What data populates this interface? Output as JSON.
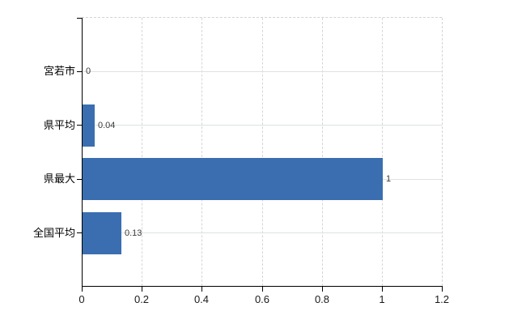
{
  "chart_data": {
    "type": "bar",
    "orientation": "horizontal",
    "title": "",
    "xlabel": "",
    "ylabel": "",
    "categories": [
      "宮若市",
      "県平均",
      "県最大",
      "全国平均"
    ],
    "values": [
      0,
      0.04,
      1,
      0.13
    ],
    "value_labels": [
      "0",
      "0.04",
      "1",
      "0.13"
    ],
    "x_ticks": [
      "0",
      "0.2",
      "0.4",
      "0.6",
      "0.8",
      "1",
      "1.2"
    ],
    "xlim": [
      0,
      1.2
    ],
    "legend": "none",
    "grid": "vertical dashed gridlines at 0.2 intervals; light horizontal line through each category",
    "bar_color": "#3a6eb0",
    "axis_color": "#000000",
    "gridline_color": "#d6d6d6",
    "rowline_color": "#dde3dd",
    "background_color": "#ffffff"
  }
}
